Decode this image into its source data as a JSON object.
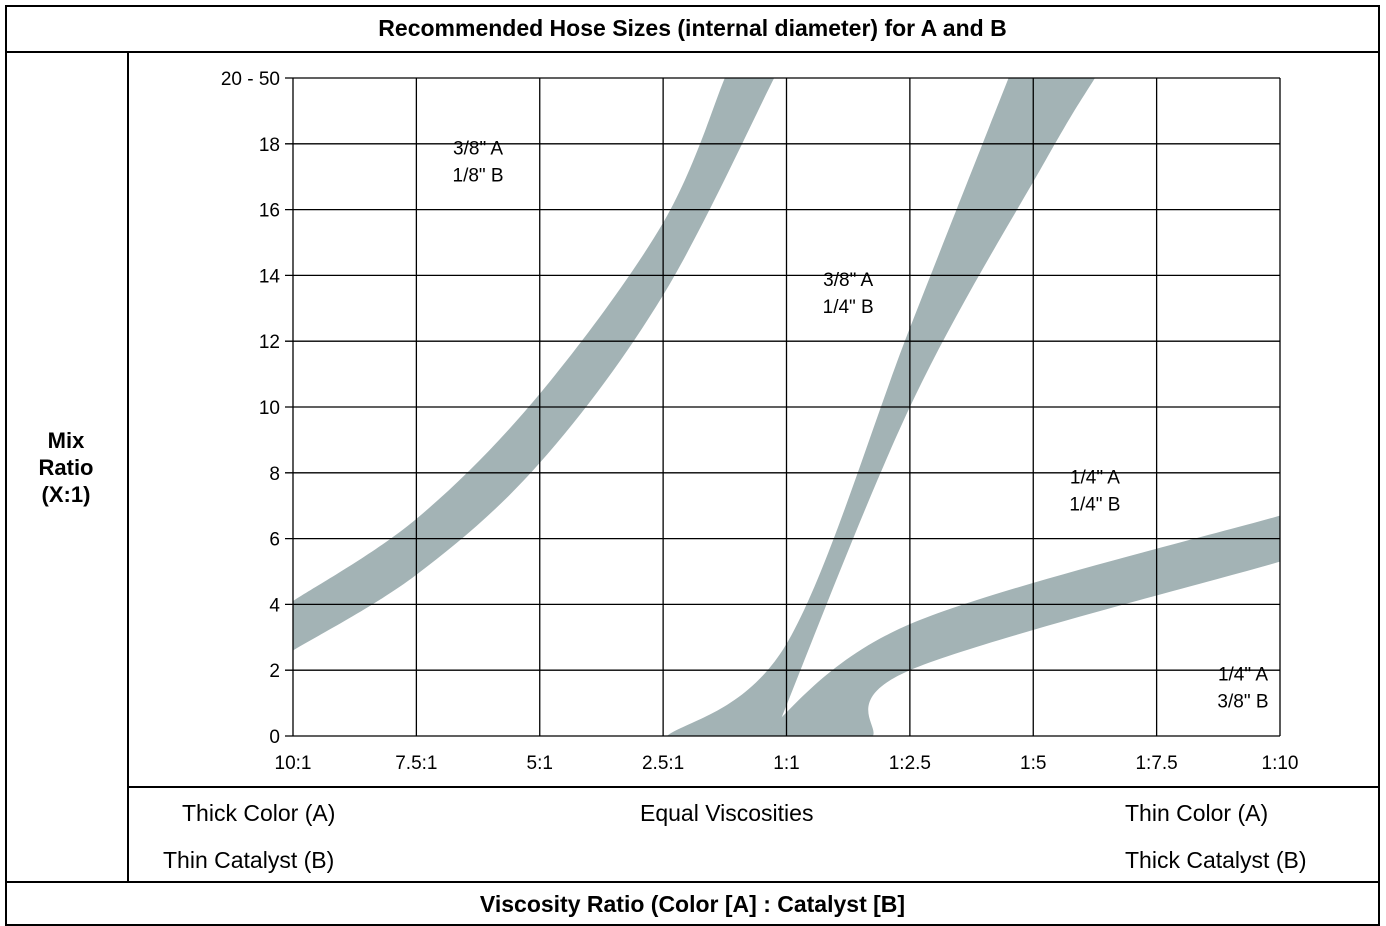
{
  "chart_data": {
    "type": "line",
    "title": "Recommended Hose Sizes (internal diameter) for A and B",
    "ylabel": [
      "Mix",
      "Ratio",
      "(X:1)"
    ],
    "xlabel": "Viscosity Ratio (Color [A] : Catalyst [B]",
    "x_ticks": [
      "10:1",
      "7.5:1",
      "5:1",
      "2.5:1",
      "1:1",
      "1:2.5",
      "1:5",
      "1:7.5",
      "1:10"
    ],
    "y_ticks": [
      "0",
      "2",
      "4",
      "6",
      "8",
      "10",
      "12",
      "14",
      "16",
      "18",
      "20 - 50"
    ],
    "ylim": [
      0,
      20
    ],
    "grid": true,
    "band_color": "#a3b3b5",
    "bands": [
      {
        "upper": [
          [
            0,
            4.1
          ],
          [
            1,
            6.6
          ],
          [
            2,
            10.4
          ],
          [
            3,
            15.6
          ],
          [
            3.5,
            20
          ]
        ],
        "lower": [
          [
            0,
            2.6
          ],
          [
            1,
            4.9
          ],
          [
            2,
            8.3
          ],
          [
            3,
            13.4
          ],
          [
            3.9,
            20
          ]
        ]
      },
      {
        "upper": [
          [
            3.03,
            0
          ],
          [
            4,
            2.8
          ],
          [
            5,
            12.4
          ],
          [
            5.8,
            20
          ]
        ],
        "lower": [
          [
            3.9,
            0
          ],
          [
            5,
            10
          ],
          [
            6.1,
            17.5
          ],
          [
            6.5,
            20
          ]
        ]
      },
      {
        "upper": [
          [
            3.8,
            0
          ],
          [
            5,
            3.4
          ],
          [
            8,
            6.7
          ]
        ],
        "lower": [
          [
            4.7,
            0
          ],
          [
            5,
            2
          ],
          [
            8,
            5.3
          ]
        ]
      }
    ],
    "regions": [
      {
        "lines": [
          "3/8\" A",
          "1/8\" B"
        ],
        "x": 1.5,
        "y": 17.5
      },
      {
        "lines": [
          "3/8\" A",
          "1/4\" B"
        ],
        "x": 4.5,
        "y": 13.5
      },
      {
        "lines": [
          "1/4\" A",
          "1/4\" B"
        ],
        "x": 6.5,
        "y": 7.5
      },
      {
        "lines": [
          "1/4\" A",
          "3/8\" B"
        ],
        "x": 7.7,
        "y": 1.5
      }
    ]
  },
  "bottom_labels": {
    "left_top": "Thick Color (A)",
    "left_bottom": "Thin Catalyst (B)",
    "center": "Equal Viscosities",
    "right_top": "Thin Color (A)",
    "right_bottom": "Thick Catalyst (B)"
  }
}
